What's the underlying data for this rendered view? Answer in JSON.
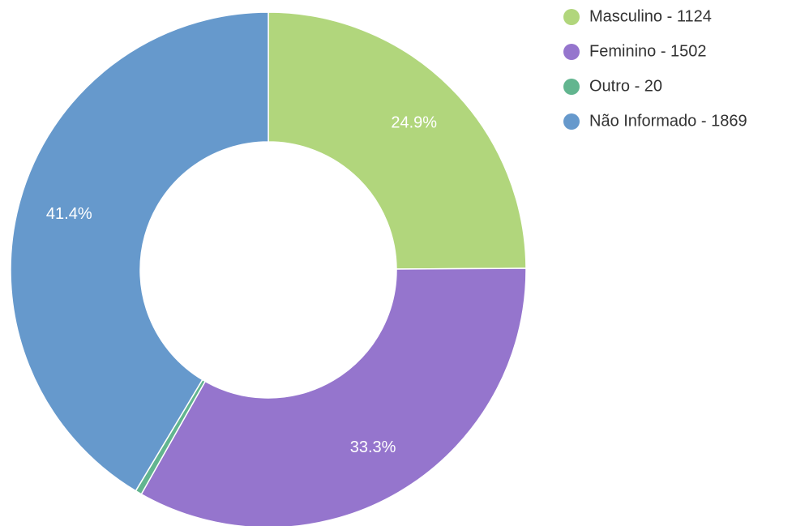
{
  "chart_data": {
    "type": "donut",
    "categories": [
      "Masculino - 1124",
      "Feminino - 1502",
      "Outro - 20",
      "Não Informado - 1869"
    ],
    "values": [
      24.9,
      33.3,
      0.4,
      41.4
    ],
    "value_labels": [
      "24.9%",
      "33.3%",
      null,
      "41.4%"
    ],
    "colors": [
      "#b1d67c",
      "#9575cd",
      "#62b58f",
      "#6699cc"
    ],
    "legend": "top-right"
  }
}
